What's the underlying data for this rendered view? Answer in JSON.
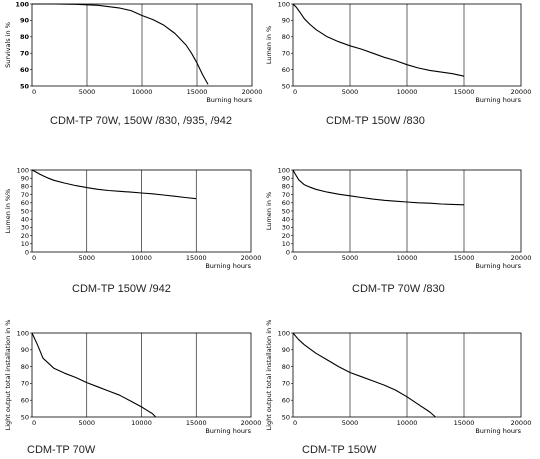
{
  "chart_data": [
    {
      "type": "line",
      "caption": "CDM-TP 70W, 150W /830, /935, /942",
      "ylabel": "Survivals in %",
      "xlabel": "Burning hours",
      "xlim": [
        0,
        20000
      ],
      "ylim": [
        50,
        100
      ],
      "x_ticks": [
        0,
        5000,
        10000,
        15000,
        20000
      ],
      "y_ticks": [
        50,
        60,
        70,
        80,
        90,
        100
      ],
      "grid": "vertical",
      "series": [
        {
          "x": [
            0,
            2000,
            4000,
            6000,
            8000,
            9000,
            10000,
            11000,
            12000,
            13000,
            14000,
            14500,
            15000,
            15500,
            16000
          ],
          "values": [
            100,
            100,
            99.8,
            99.2,
            97.5,
            96,
            93,
            90.5,
            87,
            82,
            75,
            70,
            64,
            57,
            51
          ]
        }
      ]
    },
    {
      "type": "line",
      "caption": "CDM-TP 150W /830",
      "ylabel": "Lumen in %",
      "xlabel": "Burning hours",
      "xlim": [
        0,
        20000
      ],
      "ylim": [
        50,
        100
      ],
      "x_ticks": [
        0,
        5000,
        10000,
        15000,
        20000
      ],
      "y_ticks": [
        50,
        60,
        70,
        80,
        90,
        100
      ],
      "grid": "vertical",
      "series": [
        {
          "x": [
            0,
            300,
            700,
            1000,
            1500,
            2000,
            3000,
            4000,
            5000,
            6000,
            7000,
            8000,
            9000,
            10000,
            11000,
            12000,
            13000,
            14000,
            15000
          ],
          "values": [
            100,
            98,
            94,
            91,
            87.5,
            84.5,
            80,
            77,
            74.5,
            72.5,
            70,
            67.5,
            65.5,
            63,
            61,
            59.5,
            58.5,
            57.5,
            56
          ]
        }
      ]
    },
    {
      "type": "line",
      "caption": "CDM-TP 150W /942",
      "ylabel": "Lumen in %%",
      "xlabel": "Burning hours",
      "xlim": [
        0,
        20000
      ],
      "ylim": [
        0,
        100
      ],
      "x_ticks": [
        0,
        5000,
        10000,
        15000,
        20000
      ],
      "y_ticks": [
        0,
        10,
        20,
        30,
        40,
        50,
        60,
        70,
        80,
        90,
        100
      ],
      "grid": "vertical",
      "series": [
        {
          "x": [
            0,
            300,
            700,
            1000,
            1500,
            2000,
            3000,
            4000,
            5000,
            6000,
            7000,
            8000,
            9000,
            10000,
            11000,
            12000,
            13000,
            14000,
            15000
          ],
          "values": [
            100,
            98,
            95,
            93,
            90,
            87.5,
            84,
            81,
            78.5,
            76.5,
            75,
            74,
            73,
            72,
            71,
            69.5,
            68,
            66.5,
            65
          ]
        }
      ]
    },
    {
      "type": "line",
      "caption": "CDM-TP 70W /830",
      "ylabel": "Lumen in %",
      "xlabel": "Burning hours",
      "xlim": [
        0,
        20000
      ],
      "ylim": [
        0,
        100
      ],
      "x_ticks": [
        0,
        5000,
        10000,
        15000,
        20000
      ],
      "y_ticks": [
        0,
        10,
        20,
        30,
        40,
        50,
        60,
        70,
        80,
        90,
        100
      ],
      "grid": "vertical",
      "series": [
        {
          "x": [
            0,
            200,
            500,
            1000,
            1500,
            2000,
            3000,
            4000,
            5000,
            6000,
            7000,
            8000,
            9000,
            10000,
            11000,
            12000,
            13000,
            14000,
            15000
          ],
          "values": [
            100,
            95,
            88,
            82,
            79,
            76.5,
            73,
            70.5,
            68.5,
            66.5,
            64.5,
            63,
            62,
            61,
            60,
            59.5,
            58.5,
            58,
            57.5
          ]
        }
      ]
    },
    {
      "type": "line",
      "caption": "CDM-TP 70W",
      "ylabel": "Light output total installation in %",
      "xlabel": "Burning hours",
      "xlim": [
        0,
        20000
      ],
      "ylim": [
        50,
        100
      ],
      "x_ticks": [
        0,
        5000,
        10000,
        15000,
        20000
      ],
      "y_ticks": [
        50,
        60,
        70,
        80,
        90,
        100
      ],
      "grid": "vertical",
      "series": [
        {
          "x": [
            0,
            500,
            1000,
            1500,
            2000,
            3000,
            4000,
            5000,
            6000,
            7000,
            8000,
            9000,
            10000,
            10500,
            11000,
            11300
          ],
          "values": [
            100,
            93,
            85,
            82,
            79,
            76,
            73.5,
            70.5,
            68,
            65.5,
            63,
            59.5,
            56,
            54,
            52,
            50
          ]
        }
      ]
    },
    {
      "type": "line",
      "caption": "CDM-TP 150W",
      "ylabel": "Light output total installation in %",
      "xlabel": "Burning hours",
      "xlim": [
        0,
        20000
      ],
      "ylim": [
        50,
        100
      ],
      "x_ticks": [
        0,
        5000,
        10000,
        15000,
        20000
      ],
      "y_ticks": [
        50,
        60,
        70,
        80,
        90,
        100
      ],
      "grid": "vertical",
      "series": [
        {
          "x": [
            0,
            500,
            1000,
            2000,
            3000,
            4000,
            5000,
            6000,
            7000,
            8000,
            9000,
            10000,
            11000,
            12000,
            12500
          ],
          "values": [
            100,
            96,
            93,
            88,
            84,
            80,
            76.5,
            74,
            71.5,
            69,
            66,
            62,
            57.5,
            53,
            50
          ]
        }
      ]
    }
  ]
}
